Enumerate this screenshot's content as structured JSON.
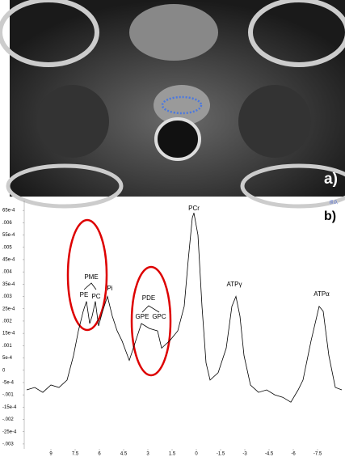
{
  "image_label": "a)",
  "chart_data": {
    "type": "line",
    "panel_label": "b)",
    "corner_note": "(0,0,",
    "color": "#000000",
    "x": [
      10.5,
      10.0,
      9.5,
      9.0,
      8.5,
      8.0,
      7.6,
      7.3,
      7.0,
      6.8,
      6.6,
      6.45,
      6.25,
      6.05,
      5.8,
      5.5,
      5.2,
      4.9,
      4.6,
      4.15,
      3.75,
      3.4,
      2.9,
      2.4,
      2.15,
      1.65,
      1.15,
      0.75,
      0.5,
      0.25,
      0.15,
      -0.1,
      -0.35,
      -0.6,
      -0.85,
      -1.35,
      -1.85,
      -2.2,
      -2.45,
      -2.7,
      -2.95,
      -3.35,
      -3.85,
      -4.35,
      -4.85,
      -5.35,
      -5.85,
      -6.3,
      -6.6,
      -7.1,
      -7.6,
      -7.85,
      -8.2,
      -8.6,
      -9.0
    ],
    "values": [
      -0.0008,
      -0.0007,
      -0.0009,
      -0.0006,
      -0.0007,
      -0.0004,
      0.0006,
      0.0016,
      0.0024,
      0.0028,
      0.0019,
      0.0022,
      0.0028,
      0.0018,
      0.0024,
      0.003,
      0.0022,
      0.0016,
      0.0012,
      0.0004,
      0.0012,
      0.0019,
      0.0017,
      0.0016,
      0.0009,
      0.0012,
      0.0016,
      0.0026,
      0.0045,
      0.0062,
      0.0064,
      0.0055,
      0.0026,
      0.0003,
      -0.0004,
      -0.0001,
      0.0009,
      0.0026,
      0.003,
      0.0022,
      0.0006,
      -0.0006,
      -0.0009,
      -0.0008,
      -0.001,
      -0.0011,
      -0.0013,
      -0.0008,
      -0.0004,
      0.0012,
      0.0026,
      0.0024,
      0.0006,
      -0.0007,
      -0.0008
    ],
    "xlim": [
      10.65,
      -9.2
    ],
    "xticks": [
      9,
      7.5,
      6,
      4.5,
      3,
      1.5,
      0,
      -1.5,
      -3,
      -4.5,
      -6,
      -7.5
    ],
    "ylim": [
      -0.0032,
      0.0069
    ],
    "yticks": [
      {
        "value": 0.0065,
        "label": "65e-4"
      },
      {
        "value": 0.006,
        "label": ".006"
      },
      {
        "value": 0.0055,
        "label": "55e-4"
      },
      {
        "value": 0.005,
        "label": ".005"
      },
      {
        "value": 0.0045,
        "label": "45e-4"
      },
      {
        "value": 0.004,
        "label": ".004"
      },
      {
        "value": 0.0035,
        "label": "35e-4"
      },
      {
        "value": 0.003,
        "label": ".003"
      },
      {
        "value": 0.0025,
        "label": "25e-4"
      },
      {
        "value": 0.002,
        "label": ".002"
      },
      {
        "value": 0.0015,
        "label": "15e-4"
      },
      {
        "value": 0.001,
        "label": ".001"
      },
      {
        "value": 0.0005,
        "label": "5e-4"
      },
      0,
      {
        "value": -0.0005,
        "label": "-5e-4"
      },
      {
        "value": -0.001,
        "label": "-.001"
      },
      {
        "value": -0.0015,
        "label": "-15e-4"
      },
      {
        "value": -0.002,
        "label": "-.002"
      },
      {
        "value": -0.0025,
        "label": "-25e-4"
      },
      {
        "value": -0.003,
        "label": "-.003"
      }
    ],
    "annotations": [
      "PME",
      "PE",
      "PC",
      "Pi",
      "PDE",
      "GPE",
      "GPC",
      "PCr",
      "ATPγ",
      "ATPα"
    ]
  }
}
